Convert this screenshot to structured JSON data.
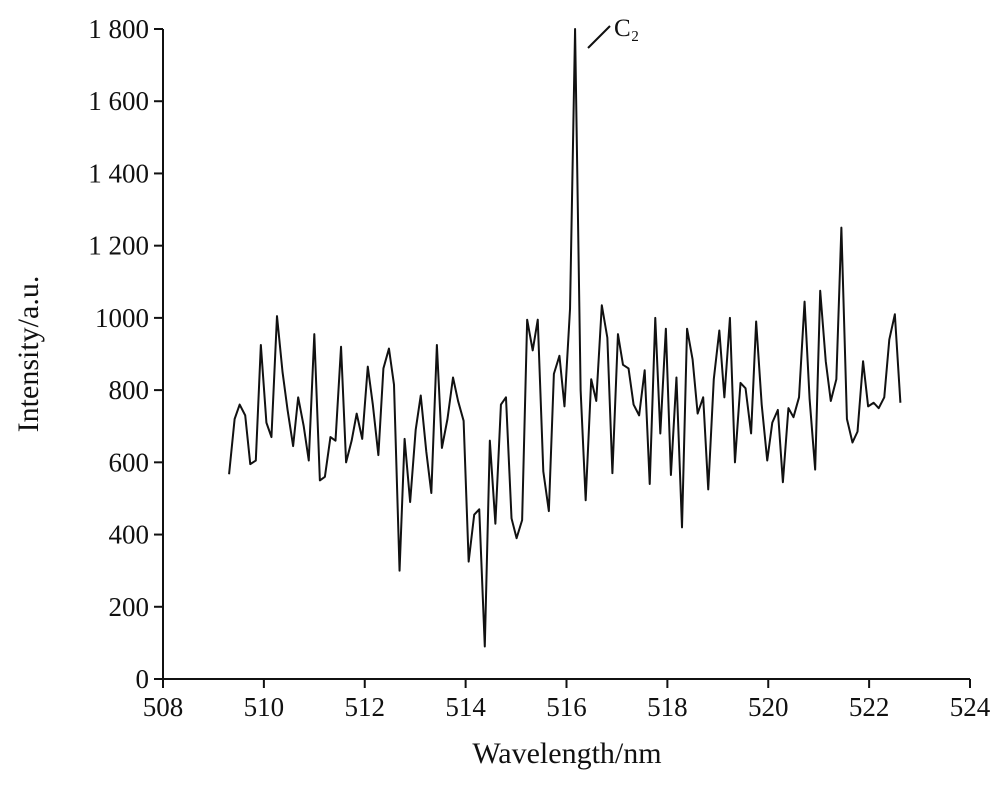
{
  "chart_data": {
    "type": "line",
    "x_label": "Wavelength/nm",
    "y_label": "Intensity/a.u.",
    "annotation": "C₂",
    "color": "#111111",
    "x": [
      509.31,
      509.42,
      509.52,
      509.63,
      509.73,
      509.84,
      509.94,
      510.05,
      510.15,
      510.26,
      510.37,
      510.47,
      510.58,
      510.68,
      510.79,
      510.89,
      511.0,
      511.11,
      511.21,
      511.32,
      511.42,
      511.53,
      511.63,
      511.74,
      511.84,
      511.95,
      512.06,
      512.16,
      512.27,
      512.37,
      512.48,
      512.58,
      512.69,
      512.79,
      512.9,
      513.01,
      513.11,
      513.22,
      513.32,
      513.43,
      513.53,
      513.64,
      513.75,
      513.85,
      513.96,
      514.06,
      514.17,
      514.27,
      514.38,
      514.48,
      514.59,
      514.7,
      514.8,
      514.91,
      515.01,
      515.12,
      515.22,
      515.33,
      515.43,
      515.54,
      515.65,
      515.75,
      515.86,
      515.96,
      516.07,
      516.17,
      516.28,
      516.38,
      516.49,
      516.59,
      516.7,
      516.81,
      516.91,
      517.02,
      517.12,
      517.23,
      517.33,
      517.44,
      517.55,
      517.65,
      517.76,
      517.86,
      517.97,
      518.07,
      518.18,
      518.29,
      518.39,
      518.5,
      518.6,
      518.71,
      518.81,
      518.92,
      519.03,
      519.13,
      519.24,
      519.34,
      519.45,
      519.55,
      519.66,
      519.76,
      519.87,
      519.98,
      520.08,
      520.19,
      520.29,
      520.4,
      520.5,
      520.61,
      520.72,
      520.82,
      520.93,
      521.03,
      521.14,
      521.24,
      521.35,
      521.45,
      521.56,
      521.67,
      521.77,
      521.88,
      521.98,
      522.09,
      522.19,
      522.3,
      522.4,
      522.51,
      522.62
    ],
    "values": [
      567,
      720,
      760,
      730,
      595,
      605,
      925,
      710,
      670,
      1005,
      850,
      745,
      645,
      780,
      700,
      605,
      955,
      550,
      560,
      670,
      660,
      920,
      600,
      660,
      735,
      665,
      865,
      760,
      620,
      860,
      915,
      815,
      300,
      665,
      490,
      690,
      785,
      630,
      515,
      925,
      640,
      720,
      835,
      770,
      715,
      325,
      455,
      470,
      90,
      660,
      430,
      760,
      780,
      445,
      390,
      440,
      995,
      910,
      995,
      575,
      465,
      845,
      895,
      755,
      1025,
      1800,
      800,
      495,
      830,
      770,
      1035,
      945,
      570,
      955,
      870,
      860,
      760,
      730,
      855,
      540,
      1000,
      680,
      970,
      565,
      835,
      420,
      970,
      885,
      735,
      780,
      525,
      830,
      965,
      780,
      1000,
      600,
      820,
      805,
      680,
      990,
      760,
      605,
      710,
      745,
      545,
      750,
      725,
      780,
      1045,
      775,
      580,
      1075,
      880,
      770,
      830,
      1250,
      720,
      655,
      685,
      880,
      755,
      765,
      750,
      780,
      940,
      1010,
      765
    ],
    "xlim": [
      508,
      524
    ],
    "xticks": [
      508,
      510,
      512,
      514,
      516,
      518,
      520,
      522,
      524
    ],
    "ylim": [
      0,
      1800
    ],
    "yticks": [
      0,
      200,
      400,
      600,
      800,
      1000,
      {
        "value": 1200,
        "label": "1 200"
      },
      {
        "value": 1400,
        "label": "1 400"
      },
      {
        "value": 1600,
        "label": "1 600"
      },
      {
        "value": 1800,
        "label": "1 800"
      }
    ],
    "grid": false
  }
}
